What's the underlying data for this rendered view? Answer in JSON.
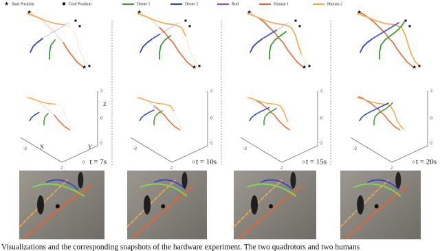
{
  "legend": [
    {
      "label": "Start Position"
    },
    {
      "label": "Goal Position"
    },
    {
      "label": "Drone 1"
    },
    {
      "label": "Drone 2"
    },
    {
      "label": "Rod"
    },
    {
      "label": "Human 1"
    },
    {
      "label": "Human 2"
    }
  ],
  "axis3d": {
    "x_label": "X",
    "y_label": "Y",
    "z_label": "Z",
    "tick_low": "-2",
    "tick_mid": "0",
    "tick_high": "2"
  },
  "panels": [
    {
      "time": "t = 7s"
    },
    {
      "time": "t = 10s"
    },
    {
      "time": "t = 15s"
    },
    {
      "time": "t = 20s"
    }
  ],
  "caption": ": Visualizations and the corresponding snapshots of the hardware experiment. The two quadrotors and two humans"
}
